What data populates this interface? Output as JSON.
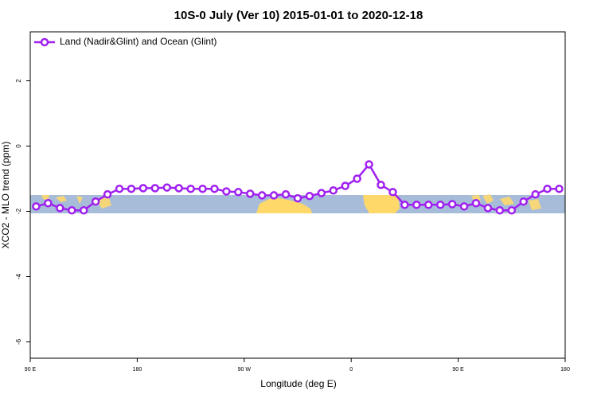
{
  "chart_data": {
    "type": "line",
    "title": "10S-0 July (Ver 10)   2015-01-01 to 2020-12-18",
    "x_label": "Longitude (deg E)",
    "y_label": "XCO2 - MLO trend (ppm)",
    "x": [
      95,
      105,
      115,
      125,
      135,
      145,
      155,
      165,
      175,
      185,
      195,
      205,
      215,
      225,
      235,
      245,
      255,
      265,
      275,
      285,
      295,
      305,
      315,
      325,
      335,
      345,
      355,
      365,
      375,
      385,
      395,
      405,
      415,
      425,
      435,
      445,
      455,
      465,
      475,
      485,
      495,
      505,
      515,
      525,
      535
    ],
    "series": [
      {
        "name": "Land (Nadir&Glint) and Ocean (Glint)",
        "color": "#a020f0",
        "values": [
          -1.85,
          -1.75,
          -1.9,
          -1.97,
          -1.97,
          -1.7,
          -1.48,
          -1.31,
          -1.31,
          -1.29,
          -1.29,
          -1.27,
          -1.29,
          -1.31,
          -1.31,
          -1.31,
          -1.39,
          -1.41,
          -1.46,
          -1.51,
          -1.51,
          -1.48,
          -1.6,
          -1.53,
          -1.44,
          -1.36,
          -1.22,
          -1.0,
          -0.56,
          -1.19,
          -1.41,
          -1.8,
          -1.8,
          -1.8,
          -1.8,
          -1.78,
          -1.85,
          -1.75,
          -1.9,
          -1.97,
          -1.97,
          -1.7,
          -1.48,
          -1.31,
          -1.31
        ]
      }
    ],
    "xlim": [
      90,
      540
    ],
    "xticks": [
      {
        "value": 90,
        "label": "90 E"
      },
      180,
      {
        "value": 270,
        "label": "90 W"
      },
      {
        "value": 360,
        "label": "0"
      },
      {
        "value": 450,
        "label": "90 E"
      },
      {
        "value": 540,
        "label": "180"
      }
    ],
    "ylim": [
      -6.5,
      3.5
    ],
    "yticks": [
      -6,
      -4,
      -2,
      0,
      2
    ],
    "legend": "top-left"
  }
}
